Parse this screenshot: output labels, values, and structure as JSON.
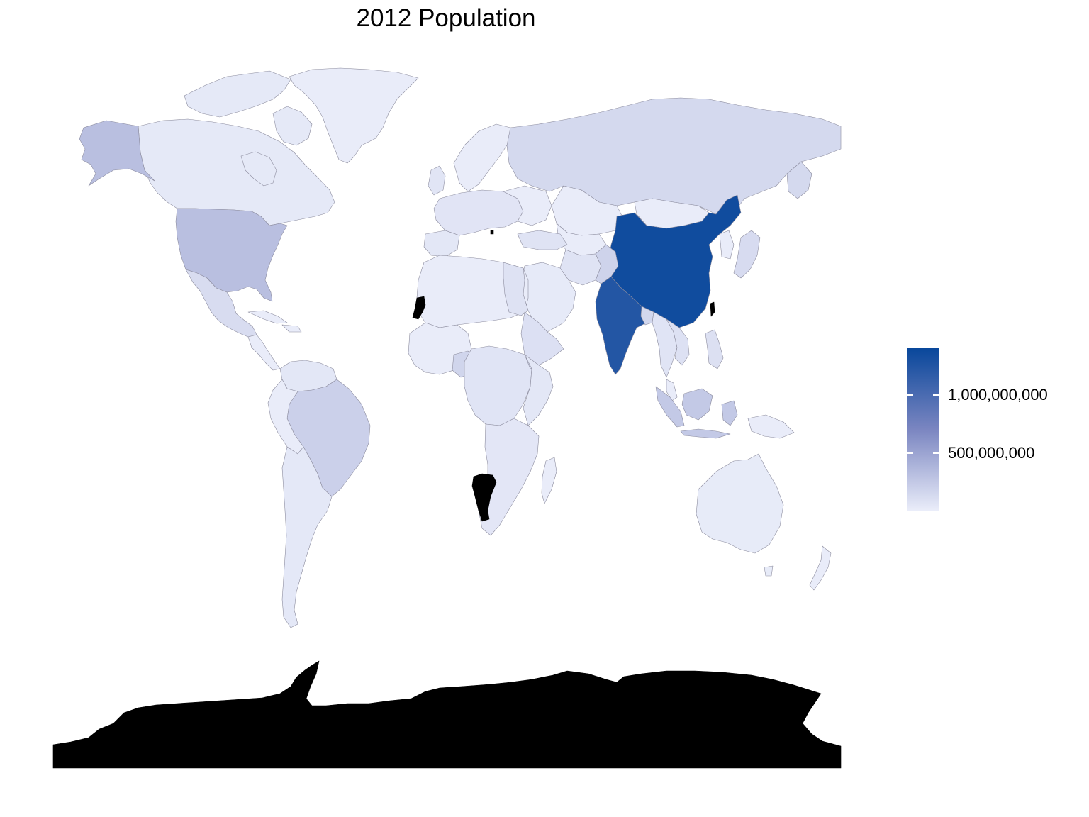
{
  "title": "2012 Population",
  "legend": {
    "ticks": [
      {
        "label": "1,000,000,000",
        "value": 1000000000
      },
      {
        "label": "500,000,000",
        "value": 500000000
      }
    ],
    "min_value": 0,
    "max_value": 1400000000,
    "color_low": "#ebeefa",
    "color_mid": "#7b86c1",
    "color_high": "#08479b",
    "no_data_color": "#000000"
  },
  "chart_data": {
    "type": "choropleth",
    "title": "2012 Population",
    "variable": "population",
    "year": 2012,
    "scale": {
      "min": 0,
      "max": 1400000000,
      "breaks": [
        500000000,
        1000000000
      ],
      "break_labels": [
        "500,000,000",
        "1,000,000,000"
      ]
    },
    "regions": [
      {
        "name": "China",
        "value": 1350000000
      },
      {
        "name": "India",
        "value": 1236000000
      },
      {
        "name": "United States",
        "value": 314000000
      },
      {
        "name": "Indonesia",
        "value": 247000000
      },
      {
        "name": "Brazil",
        "value": 199000000
      },
      {
        "name": "Pakistan",
        "value": 179000000
      },
      {
        "name": "Nigeria",
        "value": 169000000
      },
      {
        "name": "Bangladesh",
        "value": 155000000
      },
      {
        "name": "Russia",
        "value": 143000000
      },
      {
        "name": "Japan",
        "value": 127000000
      },
      {
        "name": "Mexico",
        "value": 120000000
      },
      {
        "name": "Philippines",
        "value": 96000000
      },
      {
        "name": "Vietnam",
        "value": 89000000
      },
      {
        "name": "Ethiopia",
        "value": 92000000
      },
      {
        "name": "Egypt",
        "value": 81000000
      },
      {
        "name": "Germany",
        "value": 81000000
      },
      {
        "name": "Iran",
        "value": 76000000
      },
      {
        "name": "Turkey",
        "value": 75000000
      },
      {
        "name": "DR Congo",
        "value": 66000000
      },
      {
        "name": "Thailand",
        "value": 67000000
      },
      {
        "name": "France",
        "value": 65000000
      },
      {
        "name": "United Kingdom",
        "value": 63000000
      },
      {
        "name": "Italy",
        "value": 60000000
      },
      {
        "name": "Myanmar",
        "value": 53000000
      },
      {
        "name": "South Africa",
        "value": 52000000
      },
      {
        "name": "Tanzania",
        "value": 48000000
      },
      {
        "name": "Colombia",
        "value": 47000000
      },
      {
        "name": "Spain",
        "value": 47000000
      },
      {
        "name": "Argentina",
        "value": 41000000
      },
      {
        "name": "Canada",
        "value": 35000000
      },
      {
        "name": "Saudi Arabia",
        "value": 29000000
      },
      {
        "name": "Australia",
        "value": 23000000
      }
    ],
    "no_data_regions": [
      "Antarctica",
      "Namibia",
      "Western Sahara",
      "Kosovo",
      "Taiwan"
    ]
  }
}
